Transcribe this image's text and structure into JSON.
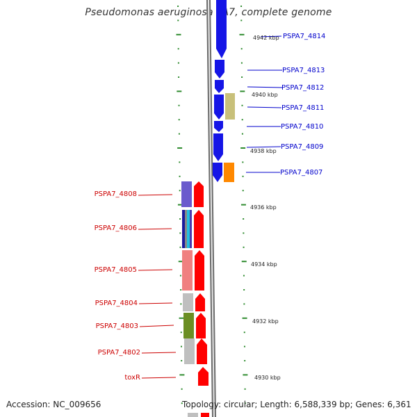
{
  "title": "Pseudomonas aeruginosa PA7, complete genome",
  "footer": {
    "accession": "Accession: NC_009656",
    "topology": "Topology: circular; Length: 6,588,339 bp; Genes: 6,361"
  },
  "colors": {
    "forward_label": "#cc0000",
    "reverse_label": "#0000cc",
    "tick": "#2e8b2e",
    "backbone": "#888888"
  },
  "kbp_labels": [
    "4942 kbp",
    "4940 kbp",
    "4938 kbp",
    "4936 kbp",
    "4934 kbp",
    "4932 kbp",
    "4930 kbp"
  ],
  "reverse_genes": [
    "PSPA7_4814",
    "PSPA7_4813",
    "PSPA7_4812",
    "PSPA7_4811",
    "PSPA7_4810",
    "PSPA7_4809",
    "PSPA7_4807"
  ],
  "forward_genes": [
    "PSPA7_4808",
    "PSPA7_4806",
    "PSPA7_4805",
    "PSPA7_4804",
    "PSPA7_4803",
    "PSPA7_4802",
    "toxR"
  ]
}
